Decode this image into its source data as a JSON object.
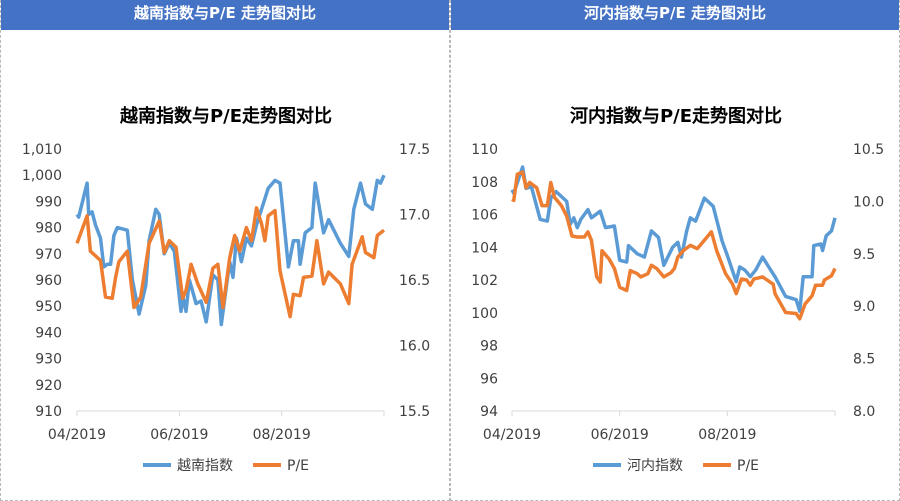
{
  "headers": [
    "越南指数与P/E 走势图对比",
    "河内指数与P/E 走势图对比"
  ],
  "colors": {
    "header": "#4472c4",
    "index": "#5b9bd5",
    "pe": "#ed7d31"
  },
  "chart_data": [
    {
      "type": "line",
      "title": "越南指数与P/E走势图对比",
      "x_unit": "days since 04/2019",
      "xlim": [
        0,
        183
      ],
      "x_ticks": [
        {
          "label": "04/2019",
          "x": 0
        },
        {
          "label": "06/2019",
          "x": 61
        },
        {
          "label": "08/2019",
          "x": 122
        }
      ],
      "y_left": {
        "lim": [
          910,
          1010
        ],
        "ticks": [
          "910",
          "920",
          "930",
          "940",
          "950",
          "960",
          "970",
          "980",
          "990",
          "1,000",
          "1,010"
        ]
      },
      "y_right": {
        "lim": [
          15.5,
          17.5
        ],
        "ticks": [
          "15.5",
          "16.0",
          "16.5",
          "17.0",
          "17.5"
        ]
      },
      "legend": "bottom",
      "series": [
        {
          "name": "越南指数",
          "axis": "left",
          "x": [
            0,
            1,
            6,
            7,
            9,
            11,
            14,
            16,
            18,
            20,
            22,
            24,
            30,
            33,
            37,
            41,
            43,
            47,
            49,
            52,
            55,
            58,
            62,
            63,
            65,
            67,
            71,
            74,
            77,
            81,
            84,
            86,
            91,
            93,
            95,
            98,
            101,
            104,
            107,
            111,
            114,
            118,
            121,
            126,
            129,
            132,
            133,
            136,
            140,
            142,
            147,
            150,
            157,
            162,
            165,
            169,
            172,
            176,
            179,
            181,
            183
          ],
          "y": [
            985,
            984,
            997,
            985,
            986,
            981,
            976,
            965,
            966,
            966,
            977,
            980,
            979,
            960,
            947,
            958,
            975,
            987,
            985,
            970,
            974,
            971,
            948,
            954,
            948,
            960,
            951,
            952,
            944,
            962,
            960,
            943,
            967,
            961,
            976,
            967,
            976,
            973,
            981,
            989,
            995,
            998,
            997,
            965,
            975,
            975,
            966,
            978,
            980,
            997,
            978,
            983,
            974,
            969,
            987,
            997,
            989,
            987,
            998,
            997,
            1000
          ]
        },
        {
          "name": "P/E",
          "axis": "right",
          "x": [
            0,
            6,
            8,
            14,
            17,
            21,
            23,
            25,
            30,
            34,
            38,
            43,
            49,
            52,
            55,
            59,
            63,
            65,
            68,
            72,
            77,
            81,
            84,
            87,
            91,
            94,
            97,
            101,
            104,
            107,
            110,
            112,
            114,
            118,
            121,
            127,
            129,
            133,
            135,
            140,
            143,
            147,
            150,
            157,
            162,
            164,
            170,
            172,
            177,
            179,
            183
          ],
          "y": [
            16.78,
            16.99,
            16.72,
            16.65,
            16.37,
            16.36,
            16.52,
            16.64,
            16.72,
            16.29,
            16.37,
            16.78,
            16.95,
            16.71,
            16.8,
            16.75,
            16.36,
            16.42,
            16.62,
            16.47,
            16.33,
            16.59,
            16.62,
            16.29,
            16.67,
            16.84,
            16.72,
            16.9,
            16.8,
            17.05,
            16.93,
            16.8,
            16.99,
            17.03,
            16.57,
            16.22,
            16.39,
            16.38,
            16.52,
            16.53,
            16.8,
            16.47,
            16.56,
            16.47,
            16.32,
            16.62,
            16.83,
            16.71,
            16.67,
            16.84,
            16.88
          ]
        }
      ]
    },
    {
      "type": "line",
      "title": "河内指数与P/E走势图对比",
      "x_unit": "days since 04/2019",
      "xlim": [
        0,
        183
      ],
      "x_ticks": [
        {
          "label": "04/2019",
          "x": 0
        },
        {
          "label": "06/2019",
          "x": 61
        },
        {
          "label": "08/2019",
          "x": 122
        }
      ],
      "y_left": {
        "lim": [
          94,
          110
        ],
        "ticks": [
          "94",
          "96",
          "98",
          "100",
          "102",
          "104",
          "106",
          "108",
          "110"
        ]
      },
      "y_right": {
        "lim": [
          8.0,
          10.5
        ],
        "ticks": [
          "8.0",
          "8.5",
          "9.0",
          "9.5",
          "10.0",
          "10.5"
        ]
      },
      "legend": "bottom",
      "series": [
        {
          "name": "河内指数",
          "axis": "left",
          "x": [
            0,
            1,
            6,
            8,
            11,
            16,
            20,
            22,
            25,
            31,
            33,
            35,
            37,
            39,
            43,
            45,
            50,
            53,
            58,
            61,
            65,
            66,
            71,
            75,
            79,
            83,
            86,
            91,
            94,
            96,
            99,
            101,
            104,
            109,
            114,
            119,
            122,
            127,
            129,
            132,
            135,
            138,
            142,
            146,
            149,
            155,
            161,
            163,
            165,
            170,
            171,
            175,
            176,
            178,
            181,
            183
          ],
          "y": [
            107.5,
            107.3,
            108.9,
            107.6,
            107.7,
            105.7,
            105.6,
            107.0,
            107.4,
            106.8,
            105.4,
            105.8,
            105.2,
            105.7,
            106.3,
            105.8,
            106.2,
            105.2,
            105.3,
            103.2,
            103.1,
            104.1,
            103.6,
            103.4,
            105.0,
            104.6,
            102.9,
            104.0,
            104.3,
            103.4,
            105.0,
            105.8,
            105.6,
            107.0,
            106.5,
            104.4,
            103.5,
            101.9,
            102.8,
            102.6,
            102.2,
            102.6,
            103.4,
            102.7,
            102.2,
            101.0,
            100.8,
            100.1,
            102.2,
            102.2,
            104.1,
            104.2,
            103.8,
            104.7,
            105.0,
            105.8
          ]
        },
        {
          "name": "P/E",
          "axis": "right",
          "x": [
            0,
            1,
            3,
            6,
            8,
            10,
            14,
            17,
            20,
            22,
            24,
            28,
            31,
            34,
            37,
            41,
            43,
            45,
            48,
            50,
            51,
            55,
            58,
            61,
            65,
            67,
            71,
            73,
            77,
            79,
            82,
            86,
            90,
            92,
            94,
            97,
            101,
            105,
            109,
            113,
            116,
            121,
            125,
            127,
            130,
            133,
            135,
            137,
            142,
            148,
            149,
            155,
            161,
            163,
            166,
            170,
            172,
            176,
            177,
            181,
            183
          ],
          "y": [
            10.02,
            10.01,
            10.26,
            10.28,
            10.13,
            10.18,
            10.13,
            9.96,
            9.96,
            10.18,
            10.04,
            9.96,
            9.86,
            9.67,
            9.66,
            9.66,
            9.71,
            9.63,
            9.28,
            9.23,
            9.53,
            9.45,
            9.36,
            9.18,
            9.15,
            9.34,
            9.31,
            9.28,
            9.31,
            9.39,
            9.36,
            9.28,
            9.32,
            9.36,
            9.47,
            9.53,
            9.58,
            9.55,
            9.63,
            9.71,
            9.53,
            9.31,
            9.21,
            9.12,
            9.26,
            9.25,
            9.2,
            9.26,
            9.28,
            9.21,
            9.12,
            8.94,
            8.93,
            8.88,
            9.02,
            9.1,
            9.2,
            9.2,
            9.25,
            9.29,
            9.36
          ]
        }
      ]
    }
  ]
}
